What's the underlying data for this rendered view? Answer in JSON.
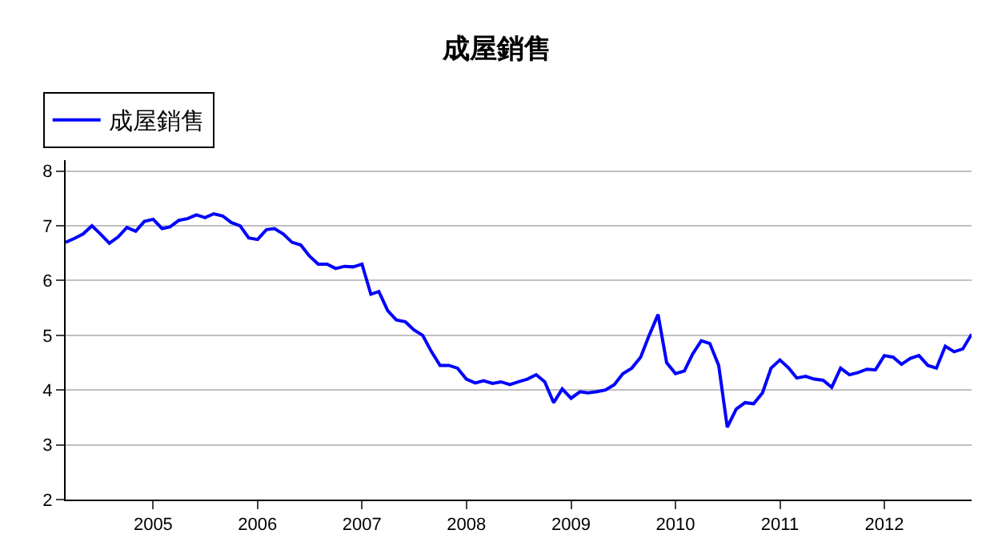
{
  "chart_data": {
    "type": "line",
    "title": "成屋銷售",
    "x": [
      "2004-03",
      "2004-04",
      "2004-05",
      "2004-06",
      "2004-07",
      "2004-08",
      "2004-09",
      "2004-10",
      "2004-11",
      "2004-12",
      "2005-01",
      "2005-02",
      "2005-03",
      "2005-04",
      "2005-05",
      "2005-06",
      "2005-07",
      "2005-08",
      "2005-09",
      "2005-10",
      "2005-11",
      "2005-12",
      "2006-01",
      "2006-02",
      "2006-03",
      "2006-04",
      "2006-05",
      "2006-06",
      "2006-07",
      "2006-08",
      "2006-09",
      "2006-10",
      "2006-11",
      "2006-12",
      "2007-01",
      "2007-02",
      "2007-03",
      "2007-04",
      "2007-05",
      "2007-06",
      "2007-07",
      "2007-08",
      "2007-09",
      "2007-10",
      "2007-11",
      "2007-12",
      "2008-01",
      "2008-02",
      "2008-03",
      "2008-04",
      "2008-05",
      "2008-06",
      "2008-07",
      "2008-08",
      "2008-09",
      "2008-10",
      "2008-11",
      "2008-12",
      "2009-01",
      "2009-02",
      "2009-03",
      "2009-04",
      "2009-05",
      "2009-06",
      "2009-07",
      "2009-08",
      "2009-09",
      "2009-10",
      "2009-11",
      "2009-12",
      "2010-01",
      "2010-02",
      "2010-03",
      "2010-04",
      "2010-05",
      "2010-06",
      "2010-07",
      "2010-08",
      "2010-09",
      "2010-10",
      "2010-11",
      "2010-12",
      "2011-01",
      "2011-02",
      "2011-03",
      "2011-04",
      "2011-05",
      "2011-06",
      "2011-07",
      "2011-08",
      "2011-09",
      "2011-10",
      "2011-11",
      "2011-12",
      "2012-01",
      "2012-02",
      "2012-03",
      "2012-04",
      "2012-05",
      "2012-06",
      "2012-07",
      "2012-08",
      "2012-09",
      "2012-10",
      "2012-11"
    ],
    "series": [
      {
        "name": "成屋銷售",
        "color": "#0000ff",
        "values": [
          6.7,
          6.77,
          6.85,
          7.0,
          6.85,
          6.68,
          6.8,
          6.97,
          6.9,
          7.08,
          7.12,
          6.95,
          6.98,
          7.1,
          7.13,
          7.2,
          7.15,
          7.22,
          7.18,
          7.06,
          7.0,
          6.78,
          6.75,
          6.93,
          6.95,
          6.85,
          6.7,
          6.65,
          6.45,
          6.3,
          6.3,
          6.22,
          6.26,
          6.25,
          6.3,
          5.75,
          5.8,
          5.45,
          5.28,
          5.25,
          5.1,
          5.0,
          4.7,
          4.45,
          4.45,
          4.4,
          4.2,
          4.13,
          4.17,
          4.12,
          4.15,
          4.1,
          4.15,
          4.2,
          4.28,
          4.15,
          3.77,
          4.02,
          3.85,
          3.97,
          3.95,
          3.97,
          4.0,
          4.1,
          4.3,
          4.4,
          4.6,
          5.0,
          5.38,
          4.5,
          4.3,
          4.35,
          4.65,
          4.9,
          4.85,
          4.45,
          3.32,
          3.65,
          3.77,
          3.75,
          3.95,
          4.4,
          4.55,
          4.4,
          4.22,
          4.25,
          4.2,
          4.18,
          4.05,
          4.4,
          4.28,
          4.32,
          4.38,
          4.37,
          4.63,
          4.6,
          4.47,
          4.58,
          4.63,
          4.45,
          4.4,
          4.8,
          4.7,
          4.75,
          5.02
        ]
      }
    ],
    "xlim": [
      "2004-03",
      "2012-11"
    ],
    "xticks": [
      "2005",
      "2006",
      "2007",
      "2008",
      "2009",
      "2010",
      "2011",
      "2012"
    ],
    "ylim": [
      2,
      8.2
    ],
    "yticks": [
      2,
      3,
      4,
      5,
      6,
      7,
      8
    ],
    "grid": "y",
    "legend": "top left",
    "marker": "none",
    "line_style": "solid"
  }
}
